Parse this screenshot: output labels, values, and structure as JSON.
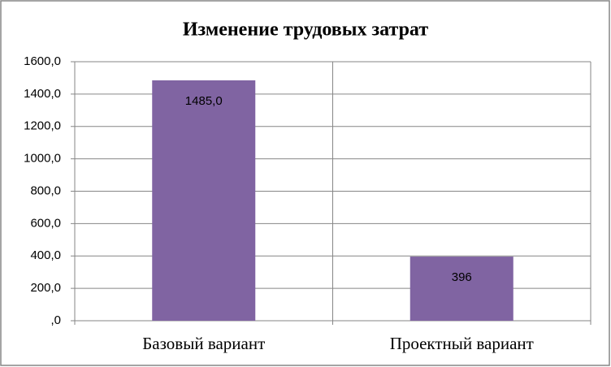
{
  "chart_data": {
    "type": "bar",
    "title": "Изменение трудовых затрат",
    "categories": [
      "Базовый вариант",
      "Проектный вариант"
    ],
    "values": [
      1485,
      396
    ],
    "value_labels": [
      "1485,0",
      "396"
    ],
    "color": "#8064a2",
    "ylim": [
      0,
      1600
    ],
    "yticks": [
      {
        "value": 0,
        "label": ",0"
      },
      {
        "value": 200,
        "label": "200,0"
      },
      {
        "value": 400,
        "label": "400,0"
      },
      {
        "value": 600,
        "label": "600,0"
      },
      {
        "value": 800,
        "label": "800,0"
      },
      {
        "value": 1000,
        "label": "1000,0"
      },
      {
        "value": 1200,
        "label": "1200,0"
      },
      {
        "value": 1400,
        "label": "1400,0"
      },
      {
        "value": 1600,
        "label": "1600,0"
      }
    ],
    "grid": true
  }
}
